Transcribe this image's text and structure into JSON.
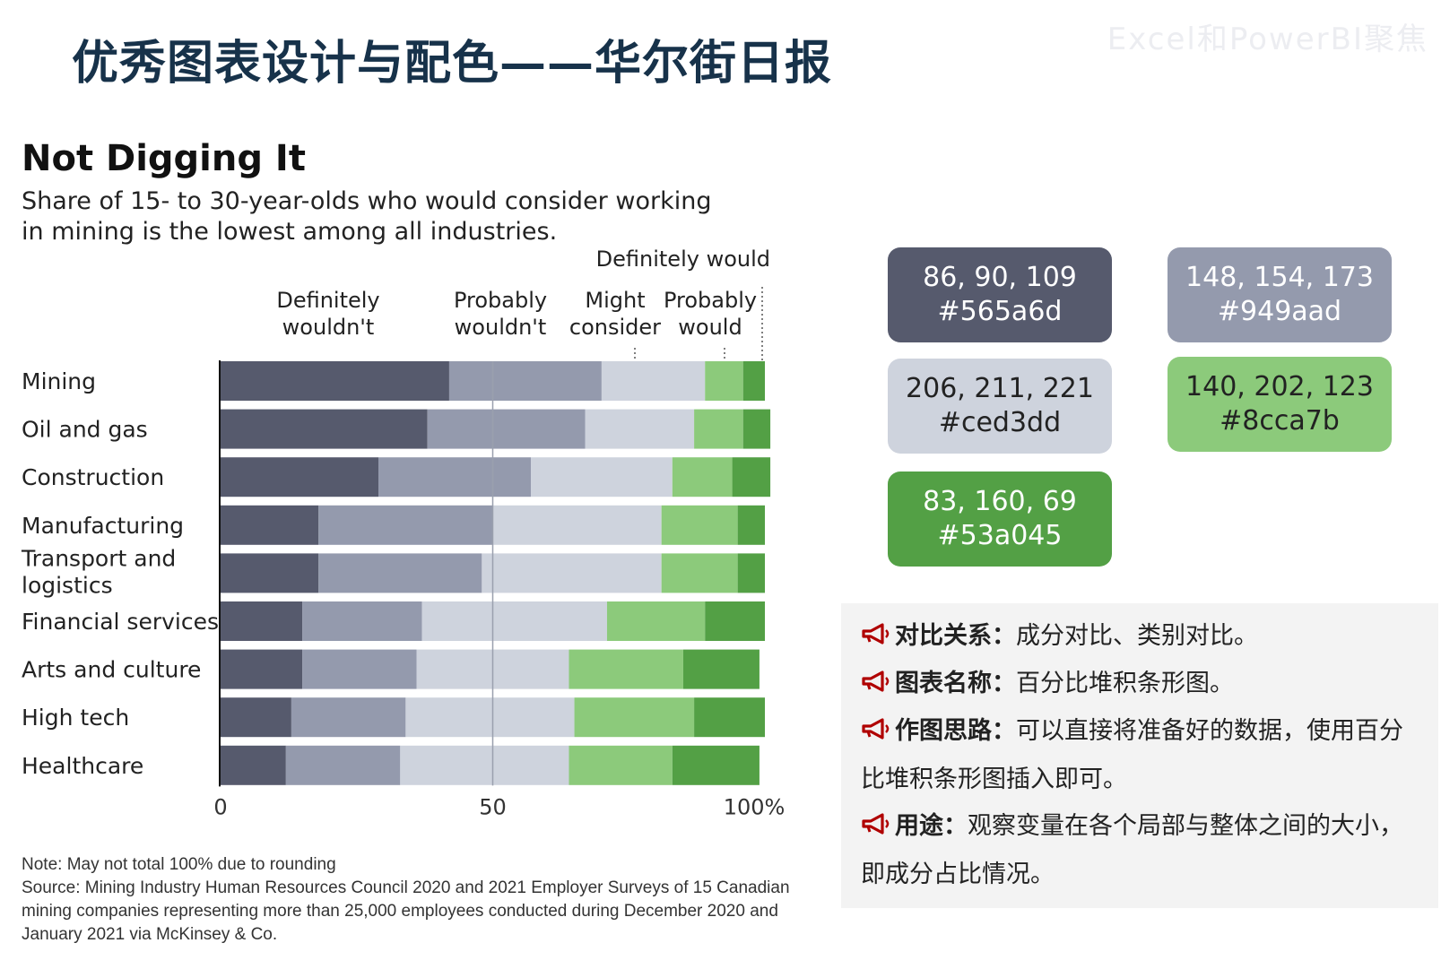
{
  "header": {
    "slide_title": "优秀图表设计与配色——华尔街日报",
    "watermark": "Excel和PowerBI聚焦"
  },
  "chart_data": {
    "type": "bar",
    "orientation": "horizontal",
    "stacked": "percent",
    "title": "Not Digging It",
    "subtitle_lines": [
      "Share of 15- to 30-year-olds who would consider working",
      "in mining is the lowest among all industries."
    ],
    "categories": [
      "Mining",
      "Oil and gas",
      "Construction",
      "Manufacturing",
      "Transport and logistics",
      "Financial services",
      "Arts and culture",
      "High tech",
      "Healthcare"
    ],
    "series": [
      {
        "name": "Definitely wouldn't",
        "label_lines": [
          "Definitely",
          "wouldn't"
        ],
        "color": "#565a6d",
        "values": [
          42,
          38,
          29,
          18,
          18,
          15,
          15,
          13,
          12
        ]
      },
      {
        "name": "Probably wouldn't",
        "label_lines": [
          "Probably",
          "wouldn't"
        ],
        "color": "#949aad",
        "values": [
          28,
          29,
          28,
          32,
          30,
          22,
          21,
          21,
          21
        ]
      },
      {
        "name": "Might consider",
        "label_lines": [
          "Might",
          "consider"
        ],
        "color": "#ced3dd",
        "values": [
          19,
          20,
          26,
          31,
          33,
          34,
          28,
          31,
          31
        ]
      },
      {
        "name": "Probably would",
        "label_lines": [
          "Probably",
          "would"
        ],
        "color": "#8cca7b",
        "values": [
          7,
          9,
          11,
          14,
          14,
          18,
          21,
          22,
          19
        ]
      },
      {
        "name": "Definitely would",
        "label_lines": [
          "Definitely would"
        ],
        "color": "#53a045",
        "values": [
          4,
          5,
          7,
          5,
          5,
          11,
          14,
          13,
          16
        ]
      }
    ],
    "xlim": [
      0,
      100
    ],
    "xticks": [
      "0",
      "50",
      "100%"
    ],
    "reference_line": 50,
    "note": "Note: May not total 100% due to rounding",
    "source": "Source: Mining Industry Human Resources Council 2020 and 2021 Employer Surveys of 15 Canadian mining companies representing more than 25,000 employees conducted during December 2020 and January 2021 via McKinsey & Co."
  },
  "swatches": [
    {
      "rgb": "86, 90, 109",
      "hex": "#565a6d",
      "bg": "#565a6d",
      "fg": "#ffffff"
    },
    {
      "rgb": "148, 154, 173",
      "hex": "#949aad",
      "bg": "#949aad",
      "fg": "#ffffff"
    },
    {
      "rgb": "206, 211, 221",
      "hex": "#ced3dd",
      "bg": "#ced3dd",
      "fg": "#222222"
    },
    {
      "rgb": "140, 202, 123",
      "hex": "#8cca7b",
      "bg": "#8cca7b",
      "fg": "#222222"
    },
    {
      "rgb": "83, 160, 69",
      "hex": "#53a045",
      "bg": "#53a045",
      "fg": "#ffffff"
    }
  ],
  "info": {
    "items": [
      {
        "label": "对比关系：",
        "text": "成分对比、类别对比。"
      },
      {
        "label": "图表名称：",
        "text": "百分比堆积条形图。"
      },
      {
        "label": "作图思路：",
        "text": "可以直接将准备好的数据，使用百分比堆积条形图插入即可。"
      },
      {
        "label": "用途：",
        "text": "观察变量在各个局部与整体之间的大小，即成分占比情况。"
      }
    ]
  }
}
